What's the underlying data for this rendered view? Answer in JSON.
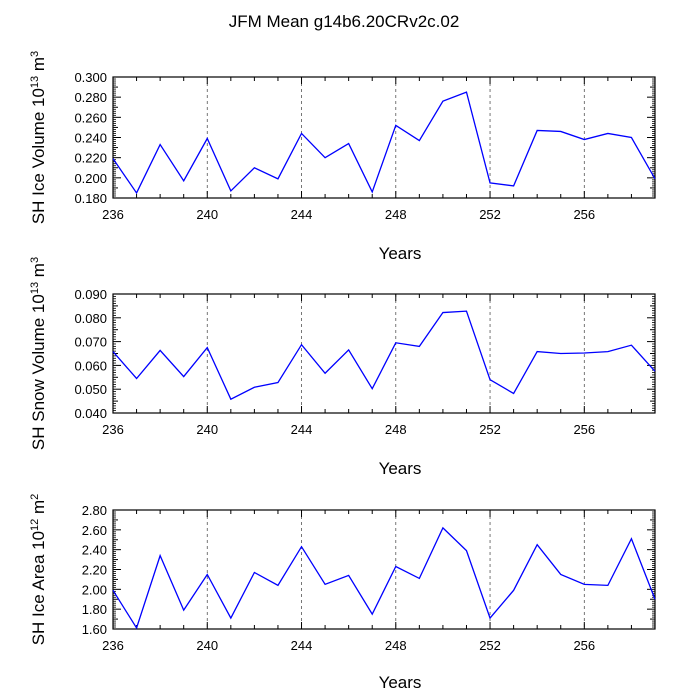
{
  "title": "JFM Mean g14b6.20CRv2c.02",
  "chart_data": [
    {
      "type": "line",
      "title": "",
      "xlabel": "Years",
      "ylabel": {
        "base": "SH Ice Volume 10",
        "exp": "13",
        "unit": " m",
        "unit_exp": "3"
      },
      "xlim": [
        236,
        259
      ],
      "ylim": [
        0.18,
        0.3
      ],
      "xticks": [
        236,
        240,
        244,
        248,
        252,
        256
      ],
      "xtick_labels": [
        "236",
        "240",
        "244",
        "248",
        "252",
        "256"
      ],
      "yticks": [
        0.18,
        0.19,
        0.2,
        0.21,
        0.22,
        0.23,
        0.24,
        0.25,
        0.26,
        0.27,
        0.28,
        0.29,
        0.3
      ],
      "ytick_labels": [
        "0.180",
        "",
        "0.200",
        "",
        "0.220",
        "",
        "0.240",
        "",
        "0.260",
        "",
        "0.280",
        "",
        "0.300"
      ],
      "grid": "vertical dashed at labeled x ticks",
      "series": [
        {
          "color": "#0000ff",
          "x": [
            236,
            237,
            238,
            239,
            240,
            241,
            242,
            243,
            244,
            245,
            246,
            247,
            248,
            249,
            250,
            251,
            252,
            253,
            254,
            255,
            256,
            257,
            258,
            259
          ],
          "values": [
            0.219,
            0.185,
            0.233,
            0.197,
            0.239,
            0.187,
            0.21,
            0.199,
            0.244,
            0.22,
            0.234,
            0.186,
            0.252,
            0.237,
            0.276,
            0.285,
            0.195,
            0.192,
            0.247,
            0.246,
            0.238,
            0.244,
            0.24,
            0.199
          ]
        }
      ]
    },
    {
      "type": "line",
      "title": "",
      "xlabel": "Years",
      "ylabel": {
        "base": "SH Snow Volume 10",
        "exp": "13",
        "unit": " m",
        "unit_exp": "3"
      },
      "xlim": [
        236,
        259
      ],
      "ylim": [
        0.04,
        0.09
      ],
      "xticks": [
        236,
        240,
        244,
        248,
        252,
        256
      ],
      "xtick_labels": [
        "236",
        "240",
        "244",
        "248",
        "252",
        "256"
      ],
      "yticks": [
        0.04,
        0.045,
        0.05,
        0.055,
        0.06,
        0.065,
        0.07,
        0.075,
        0.08,
        0.085,
        0.09
      ],
      "ytick_labels": [
        "0.040",
        "",
        "0.050",
        "",
        "0.060",
        "",
        "0.070",
        "",
        "0.080",
        "",
        "0.090"
      ],
      "grid": "vertical dashed at labeled x ticks",
      "series": [
        {
          "color": "#0000ff",
          "x": [
            236,
            237,
            238,
            239,
            240,
            241,
            242,
            243,
            244,
            245,
            246,
            247,
            248,
            249,
            250,
            251,
            252,
            253,
            254,
            255,
            256,
            257,
            258,
            259
          ],
          "values": [
            0.0658,
            0.0545,
            0.0663,
            0.0553,
            0.0675,
            0.0458,
            0.0508,
            0.0528,
            0.0687,
            0.0567,
            0.0665,
            0.0502,
            0.0695,
            0.068,
            0.0822,
            0.0828,
            0.054,
            0.0482,
            0.0658,
            0.065,
            0.0652,
            0.0658,
            0.0685,
            0.0575
          ]
        }
      ]
    },
    {
      "type": "line",
      "title": "",
      "xlabel": "Years",
      "ylabel": {
        "base": "SH Ice Area 10",
        "exp": "12",
        "unit": " m",
        "unit_exp": "2"
      },
      "xlim": [
        236,
        259
      ],
      "ylim": [
        1.6,
        2.8
      ],
      "xticks": [
        236,
        240,
        244,
        248,
        252,
        256
      ],
      "xtick_labels": [
        "236",
        "240",
        "244",
        "248",
        "252",
        "256"
      ],
      "yticks": [
        1.6,
        1.7,
        1.8,
        1.9,
        2.0,
        2.1,
        2.2,
        2.3,
        2.4,
        2.5,
        2.6,
        2.7,
        2.8
      ],
      "ytick_labels": [
        "1.60",
        "",
        "1.80",
        "",
        "2.00",
        "",
        "2.20",
        "",
        "2.40",
        "",
        "2.60",
        "",
        "2.80"
      ],
      "grid": "vertical dashed at labeled x ticks",
      "series": [
        {
          "color": "#0000ff",
          "x": [
            236,
            237,
            238,
            239,
            240,
            241,
            242,
            243,
            244,
            245,
            246,
            247,
            248,
            249,
            250,
            251,
            252,
            253,
            254,
            255,
            256,
            257,
            258,
            259
          ],
          "values": [
            1.99,
            1.61,
            2.34,
            1.79,
            2.15,
            1.71,
            2.17,
            2.04,
            2.43,
            2.05,
            2.14,
            1.75,
            2.23,
            2.11,
            2.62,
            2.39,
            1.71,
            1.99,
            2.45,
            2.15,
            2.05,
            2.04,
            2.51,
            1.9
          ]
        }
      ]
    }
  ]
}
